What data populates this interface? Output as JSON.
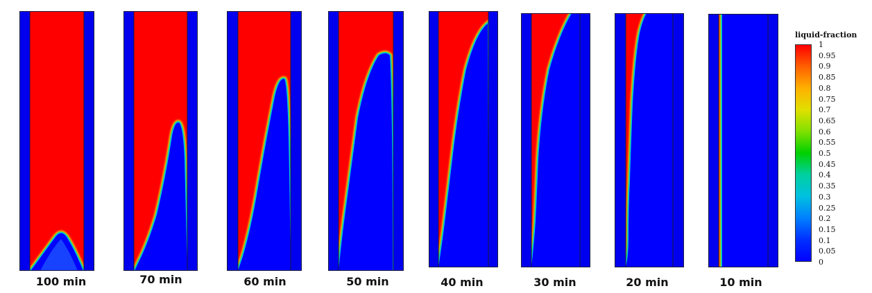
{
  "panels": [
    {
      "label": "100 min",
      "liquid_fraction_shown": "mostly liquid, small solid mound at base"
    },
    {
      "label": "70 min"
    },
    {
      "label": "60 min"
    },
    {
      "label": "50 min"
    },
    {
      "label": "40 min"
    },
    {
      "label": "30 min"
    },
    {
      "label": "20 min"
    },
    {
      "label": "10 min"
    }
  ],
  "legend": {
    "title": "liquid-fraction",
    "ticks": [
      "1",
      "0.95",
      "0.9",
      "0.85",
      "0.8",
      "0.75",
      "0.7",
      "0.65",
      "0.6",
      "0.55",
      "0.5",
      "0.45",
      "0.4",
      "0.35",
      "0.3",
      "0.25",
      "0.2",
      "0.15",
      "0.1",
      "0.05",
      "0"
    ]
  },
  "colors": {
    "liquid": "#ff0000",
    "solid": "#0000ff",
    "wall": "#0000ee",
    "colormap": [
      "#ff0000",
      "#ff6000",
      "#ffb000",
      "#e0e000",
      "#80e000",
      "#00d000",
      "#00d0a0",
      "#00c0e0",
      "#0080ff",
      "#0030ff",
      "#0000ff"
    ]
  }
}
